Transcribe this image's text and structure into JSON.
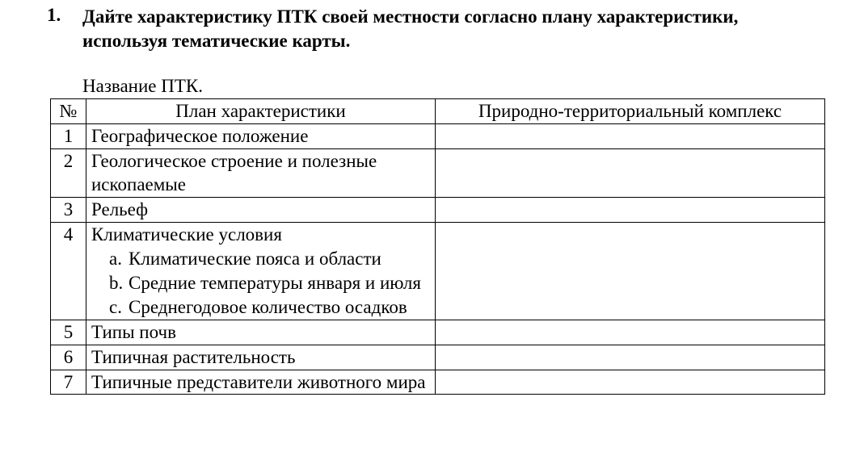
{
  "heading": {
    "number": "1.",
    "line1": "Дайте характеристику ПТК своей местности согласно  плану характеристики,",
    "line2": "используя тематические карты."
  },
  "subheading": "Название ПТК.",
  "table": {
    "headers": {
      "num": "№",
      "plan": "План характеристики",
      "ptk": "Природно-территориальный комплекс"
    },
    "rows": [
      {
        "num": "1",
        "plan": "Географическое положение",
        "ptk": ""
      },
      {
        "num": "2",
        "plan": "Геологическое строение и полезные ископаемые",
        "ptk": ""
      },
      {
        "num": "3",
        "plan": "Рельеф",
        "ptk": ""
      },
      {
        "num": "4",
        "plan": "Климатические условия",
        "sub": [
          {
            "letter": "a.",
            "text": "Климатические пояса и области"
          },
          {
            "letter": "b.",
            "text": "Средние температуры января и июля"
          },
          {
            "letter": "c.",
            "text": "Среднегодовое количество осадков"
          }
        ],
        "ptk": ""
      },
      {
        "num": "5",
        "plan": "Типы почв",
        "ptk": ""
      },
      {
        "num": "6",
        "plan": "Типичная растительность",
        "ptk": ""
      },
      {
        "num": "7",
        "plan": "Типичные представители животного мира",
        "ptk": ""
      }
    ]
  }
}
